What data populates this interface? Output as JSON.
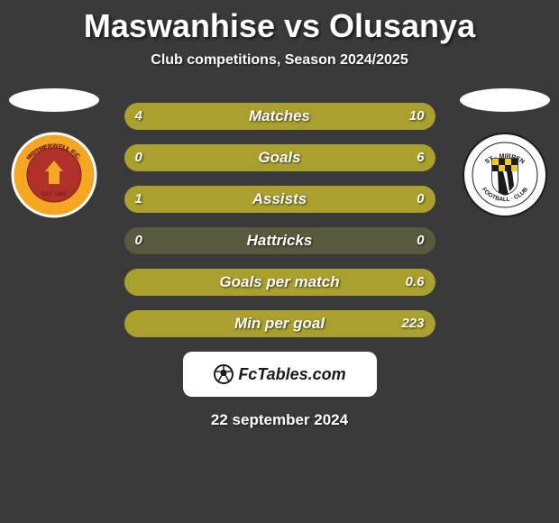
{
  "title": "Maswanhise vs Olusanya",
  "subtitle": "Club competitions, Season 2024/2025",
  "footer_brand": "FcTables.com",
  "footer_date": "22 september 2024",
  "colors": {
    "bar_track": "#585a3e",
    "bar_fill": "#a9a02e",
    "bg": "#3a3a3a",
    "text": "#ffffff"
  },
  "crest_left": {
    "name": "Motherwell FC",
    "outer": "#f5a623",
    "inner": "#b0302a",
    "border": "#ffffff"
  },
  "crest_right": {
    "name": "St Mirren Football Club",
    "outer": "#ffffff",
    "inner_check1": "#f3c728",
    "inner_check2": "#1a1a1a",
    "stripe": "#1a1a1a"
  },
  "stats": [
    {
      "label": "Matches",
      "left_val": "4",
      "right_val": "10",
      "left_pct": 28.6,
      "right_pct": 71.4
    },
    {
      "label": "Goals",
      "left_val": "0",
      "right_val": "6",
      "left_pct": 0.0,
      "right_pct": 100.0
    },
    {
      "label": "Assists",
      "left_val": "1",
      "right_val": "0",
      "left_pct": 100.0,
      "right_pct": 0.0
    },
    {
      "label": "Hattricks",
      "left_val": "0",
      "right_val": "0",
      "left_pct": 0.0,
      "right_pct": 0.0
    },
    {
      "label": "Goals per match",
      "left_val": "",
      "right_val": "0.6",
      "left_pct": 0.0,
      "right_pct": 100.0
    },
    {
      "label": "Min per goal",
      "left_val": "",
      "right_val": "223",
      "left_pct": 0.0,
      "right_pct": 100.0
    }
  ]
}
